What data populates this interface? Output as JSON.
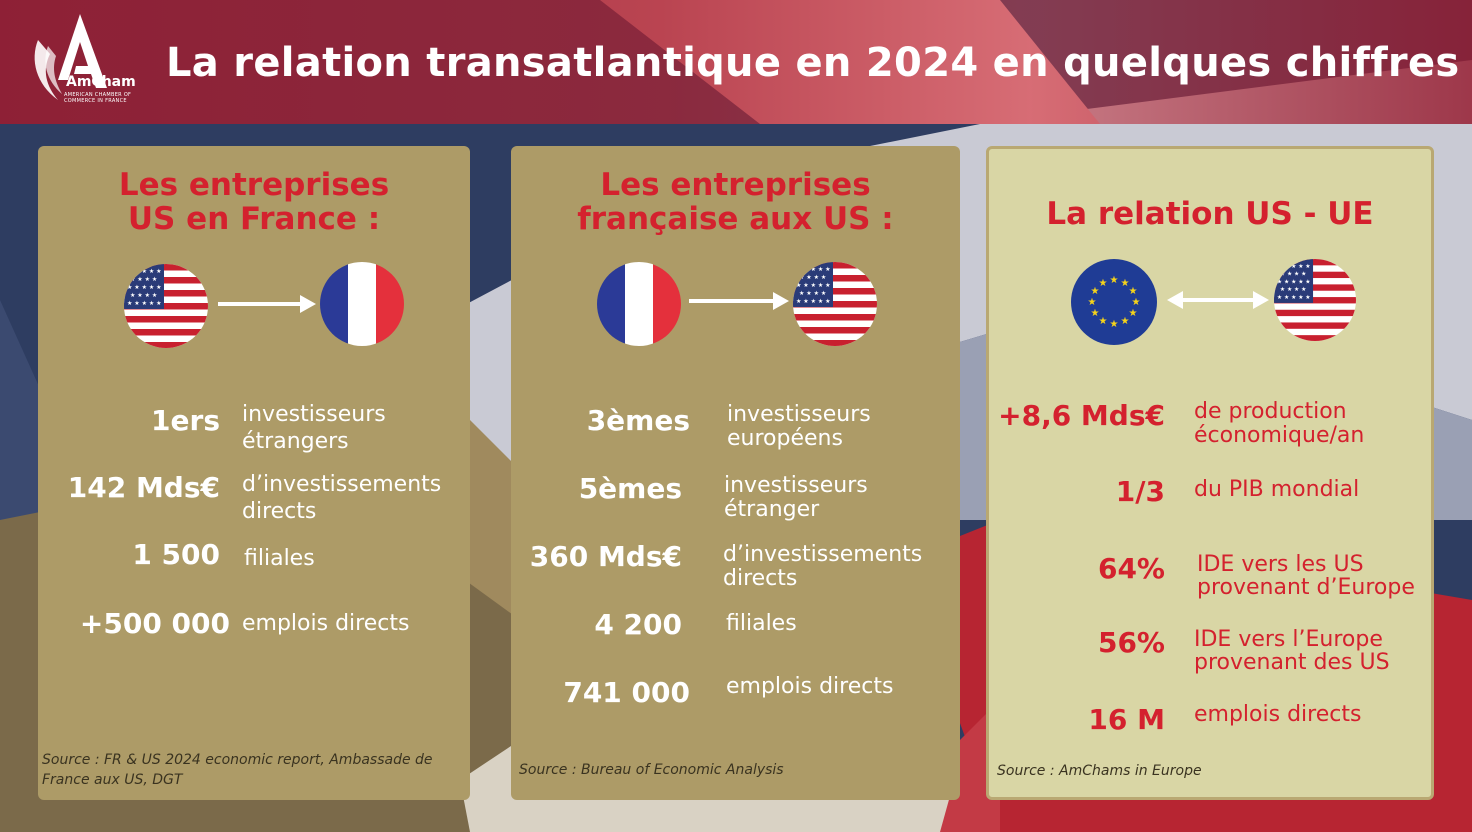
{
  "header": {
    "title": "La relation transatlantique en 2024 en quelques chiffres",
    "logo_text": "AmCham",
    "logo_subtitle": "AMERICAN CHAMBER OF COMMERCE IN FRANCE"
  },
  "colors": {
    "accent_red": "#d4212e",
    "panel_gold": "#ad9b67",
    "panel_cream": "#d9d6a5",
    "header_red": "#9b1e32"
  },
  "panels": [
    {
      "title_line1": "Les entreprises",
      "title_line2": "US en France :",
      "flags": [
        "us-flag-icon",
        "france-flag-icon"
      ],
      "stats": [
        {
          "value": "1ers",
          "label1": "investisseurs",
          "label2": "étrangers"
        },
        {
          "value": "142 Mds€",
          "label1": "d’investissements",
          "label2": "directs"
        },
        {
          "value": "1 500",
          "label1": "filiales",
          "label2": ""
        },
        {
          "value": "+500 000",
          "label1": "emplois directs",
          "label2": ""
        }
      ],
      "source_line1": "Source : FR & US 2024 economic report, Ambassade de",
      "source_line2": "France aux US, DGT"
    },
    {
      "title_line1": "Les entreprises",
      "title_line2": "française aux US :",
      "flags": [
        "france-flag-icon",
        "us-flag-icon"
      ],
      "stats": [
        {
          "value": "3èmes",
          "label1": "investisseurs",
          "label2": "européens"
        },
        {
          "value": "5èmes",
          "label1": "investisseurs",
          "label2": "étranger"
        },
        {
          "value": "360 Mds€",
          "label1": "d’investissements",
          "label2": "directs"
        },
        {
          "value": "4 200",
          "label1": "filiales",
          "label2": ""
        },
        {
          "value": "741 000",
          "label1": "emplois directs",
          "label2": ""
        }
      ],
      "source_line1": "Source : Bureau of Economic Analysis"
    },
    {
      "title_line1": "La relation US - UE",
      "flags": [
        "eu-flag-icon",
        "us-flag-icon"
      ],
      "stats": [
        {
          "value": "+8,6 Mds€",
          "label1": "de production",
          "label2": "économique/an"
        },
        {
          "value": "1/3",
          "label1": "du PIB mondial",
          "label2": ""
        },
        {
          "value": "64%",
          "label1": "IDE vers les US",
          "label2": "provenant d’Europe"
        },
        {
          "value": "56%",
          "label1": "IDE vers l’Europe",
          "label2": "provenant des US"
        },
        {
          "value": "16 M",
          "label1": "emplois directs",
          "label2": ""
        }
      ],
      "source_line1": "Source : AmChams in Europe"
    }
  ]
}
